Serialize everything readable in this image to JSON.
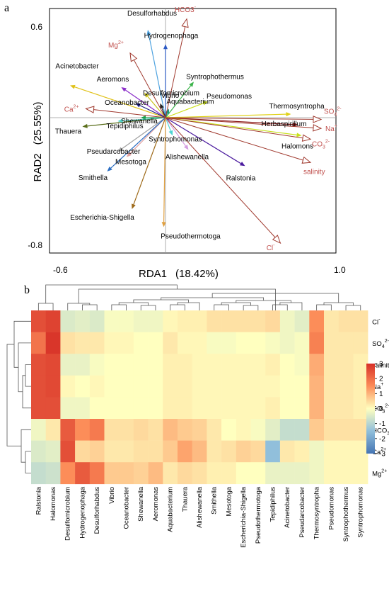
{
  "chart_data": [
    {
      "type": "scatter",
      "subtype": "rda-biplot",
      "panel_label": "a",
      "xlabel": "RDA1",
      "xlabel_pct": "(18.42%)",
      "ylabel": "RAD2",
      "ylabel_pct": "(25.55%)",
      "xlim": [
        -0.6,
        1.0
      ],
      "ylim": [
        -0.8,
        0.6
      ],
      "xticks": [
        "-0.6",
        "1.0"
      ],
      "yticks": [
        "0.6",
        "-0.8"
      ],
      "species_vectors": [
        {
          "name": "Desulforhabdus",
          "x": -0.1,
          "y": 0.49,
          "color": "#4fa3e0"
        },
        {
          "name": "Hydrogenophaga",
          "x": 0.0,
          "y": 0.41,
          "color": "#2b59c3"
        },
        {
          "name": "Acinetobacter",
          "x": -0.54,
          "y": 0.18,
          "color": "#e0c21a"
        },
        {
          "name": "Aeromons",
          "x": -0.25,
          "y": 0.17,
          "color": "#8b2fc9"
        },
        {
          "name": "Desulfomicrobium",
          "x": -0.12,
          "y": 0.14,
          "color": "#c9c21a"
        },
        {
          "name": "Syntrophothermus",
          "x": 0.16,
          "y": 0.2,
          "color": "#3cb44b"
        },
        {
          "name": "Vibrio",
          "x": -0.03,
          "y": 0.08,
          "color": "#222222"
        },
        {
          "name": "Oceanobacter",
          "x": -0.17,
          "y": 0.08,
          "color": "#1a1a80"
        },
        {
          "name": "Pseudomonas",
          "x": 0.24,
          "y": 0.09,
          "color": "#cde01a"
        },
        {
          "name": "Aquabacterium",
          "x": 0.02,
          "y": 0.05,
          "color": "#1a9e7a"
        },
        {
          "name": "Thermosyntropha",
          "x": 0.71,
          "y": 0.02,
          "color": "#e0d21a"
        },
        {
          "name": "Herbaspirillum",
          "x": 0.75,
          "y": -0.04,
          "color": "#8b1a1a"
        },
        {
          "name": "Halomons",
          "x": 0.77,
          "y": -0.1,
          "color": "#c8e01a"
        },
        {
          "name": "Shewanella",
          "x": -0.14,
          "y": 0.0,
          "color": "#1a9e4a"
        },
        {
          "name": "Thauera",
          "x": -0.47,
          "y": -0.05,
          "color": "#5a6e1a"
        },
        {
          "name": "Tepidiphilus",
          "x": -0.27,
          "y": -0.02,
          "color": "#4fd4c8"
        },
        {
          "name": "Syntrophomonas",
          "x": 0.04,
          "y": -0.1,
          "color": "#4fd4d4"
        },
        {
          "name": "Alishewanella",
          "x": 0.13,
          "y": -0.18,
          "color": "#d49ce0"
        },
        {
          "name": "Pseudarcobacter",
          "x": -0.27,
          "y": -0.19,
          "color": "#a0a0a0"
        },
        {
          "name": "Mesotoga",
          "x": -0.22,
          "y": -0.22,
          "color": "#e0a0a0"
        },
        {
          "name": "Ralstonia",
          "x": 0.45,
          "y": -0.27,
          "color": "#4a1a9e"
        },
        {
          "name": "Smithella",
          "x": -0.33,
          "y": -0.3,
          "color": "#2b6ec3"
        },
        {
          "name": "Escherichia-Shigella",
          "x": -0.19,
          "y": -0.51,
          "color": "#9e6a1a"
        },
        {
          "name": "Pseudothermotoga",
          "x": -0.01,
          "y": -0.61,
          "color": "#e0a040"
        }
      ],
      "env_vectors": [
        {
          "name": "HCO3",
          "sup": "-",
          "sub": "",
          "x": 0.12,
          "y": 0.55
        },
        {
          "name": "Mg",
          "sup": "2+",
          "sub": "",
          "x": -0.2,
          "y": 0.36
        },
        {
          "name": "Ca",
          "sup": "2+",
          "sub": "",
          "x": -0.45,
          "y": 0.05
        },
        {
          "name": "SO",
          "sup": "2-",
          "sub": "4",
          "x": 0.88,
          "y": -0.01
        },
        {
          "name": "Na",
          "sup": "+",
          "sub": "",
          "x": 0.88,
          "y": -0.06
        },
        {
          "name": "CO",
          "sup": "2-",
          "sub": "3",
          "x": 0.82,
          "y": -0.12
        },
        {
          "name": "salinity",
          "x": 0.82,
          "y": -0.25
        },
        {
          "name": "Cl",
          "sup": "-",
          "sub": "",
          "x": 0.65,
          "y": -0.7
        }
      ]
    },
    {
      "type": "heatmap",
      "panel_label": "b",
      "columns": [
        "Ralstonia",
        "Halomonas",
        "Desulfomicrobium",
        "Hydrogenophaga",
        "Desulforhabdus",
        "Vibrio",
        "Oceanobacter",
        "Shewanella",
        "Aeromonas",
        "Aquabacterium",
        "Thauera",
        "Alishewanella",
        "Smithella",
        "Mesotoga",
        "Escherichia-Shigella",
        "Pseudothermotoga",
        "Tepidiphilus",
        "Acinetobacter",
        "Pseudarcobacter",
        "Thermosyntropha",
        "Pseudomonas",
        "Syntrophothermus",
        "Syntrophomonas"
      ],
      "rows": [
        {
          "name": "Cl",
          "sup": "-",
          "sub": ""
        },
        {
          "name": "SO",
          "sup": "2-",
          "sub": "4"
        },
        {
          "name": "salinity",
          "sup": "",
          "sub": ""
        },
        {
          "name": "Na",
          "sup": "+",
          "sub": ""
        },
        {
          "name": "CO",
          "sup": "2-",
          "sub": "3"
        },
        {
          "name": "HCO",
          "sup": "-",
          "sub": "3"
        },
        {
          "name": "Ca",
          "sup": "2+",
          "sub": ""
        },
        {
          "name": "Mg",
          "sup": "2+",
          "sub": ""
        }
      ],
      "values": [
        [
          2.5,
          2.7,
          -0.5,
          -0.4,
          -0.5,
          -0.1,
          -0.1,
          -0.2,
          -0.2,
          0.1,
          0.2,
          0.2,
          0.4,
          0.4,
          0.4,
          0.4,
          0.5,
          -0.2,
          -0.4,
          1.5,
          0.3,
          0.4,
          0.4
        ],
        [
          1.9,
          2.9,
          0.4,
          0.3,
          0.3,
          0.1,
          0.1,
          0.0,
          0.0,
          0.3,
          0.1,
          0.1,
          -0.1,
          -0.1,
          0.0,
          0.0,
          -0.1,
          -0.2,
          -0.1,
          1.7,
          0.3,
          0.3,
          0.3
        ],
        [
          2.5,
          2.6,
          -0.3,
          -0.3,
          -0.1,
          0.0,
          0.0,
          0.0,
          0.0,
          0.2,
          0.2,
          0.1,
          0.1,
          0.1,
          0.1,
          0.1,
          0.2,
          0.0,
          -0.1,
          1.1,
          0.3,
          0.3,
          0.2
        ],
        [
          2.5,
          2.6,
          0.1,
          0.0,
          0.1,
          0.0,
          0.0,
          0.0,
          0.0,
          0.2,
          0.2,
          0.1,
          0.1,
          0.1,
          0.1,
          0.1,
          0.1,
          0.0,
          0.0,
          1.0,
          0.3,
          0.3,
          0.2
        ],
        [
          2.5,
          2.5,
          -0.2,
          -0.2,
          0.0,
          0.0,
          0.0,
          0.0,
          0.0,
          0.2,
          0.2,
          0.1,
          0.1,
          0.1,
          0.1,
          0.1,
          0.2,
          0.0,
          0.0,
          1.0,
          0.3,
          0.3,
          0.2
        ],
        [
          -0.2,
          0.3,
          2.3,
          1.5,
          1.8,
          0.4,
          0.4,
          0.5,
          0.4,
          0.9,
          0.7,
          0.6,
          0.3,
          0.0,
          0.1,
          -0.1,
          -0.4,
          -0.8,
          -0.8,
          0.7,
          0.4,
          0.4,
          0.4
        ],
        [
          -0.5,
          -0.4,
          2.5,
          0.5,
          0.6,
          0.3,
          0.3,
          0.4,
          0.4,
          0.7,
          1.2,
          0.9,
          0.3,
          0.4,
          0.6,
          0.5,
          -1.5,
          0.3,
          0.2,
          -0.2,
          0.1,
          0.1,
          0.1
        ],
        [
          -0.8,
          -0.7,
          1.5,
          2.3,
          1.8,
          0.7,
          0.7,
          0.6,
          0.9,
          0.3,
          0.5,
          0.4,
          0.2,
          0.2,
          0.0,
          0.0,
          -0.3,
          -0.3,
          -0.3,
          -0.2,
          0.1,
          0.1,
          0.1
        ]
      ],
      "colorbar": {
        "min": -3,
        "max": 3,
        "ticks": [
          3,
          2,
          1,
          0,
          -1,
          -2,
          -3
        ]
      }
    }
  ]
}
